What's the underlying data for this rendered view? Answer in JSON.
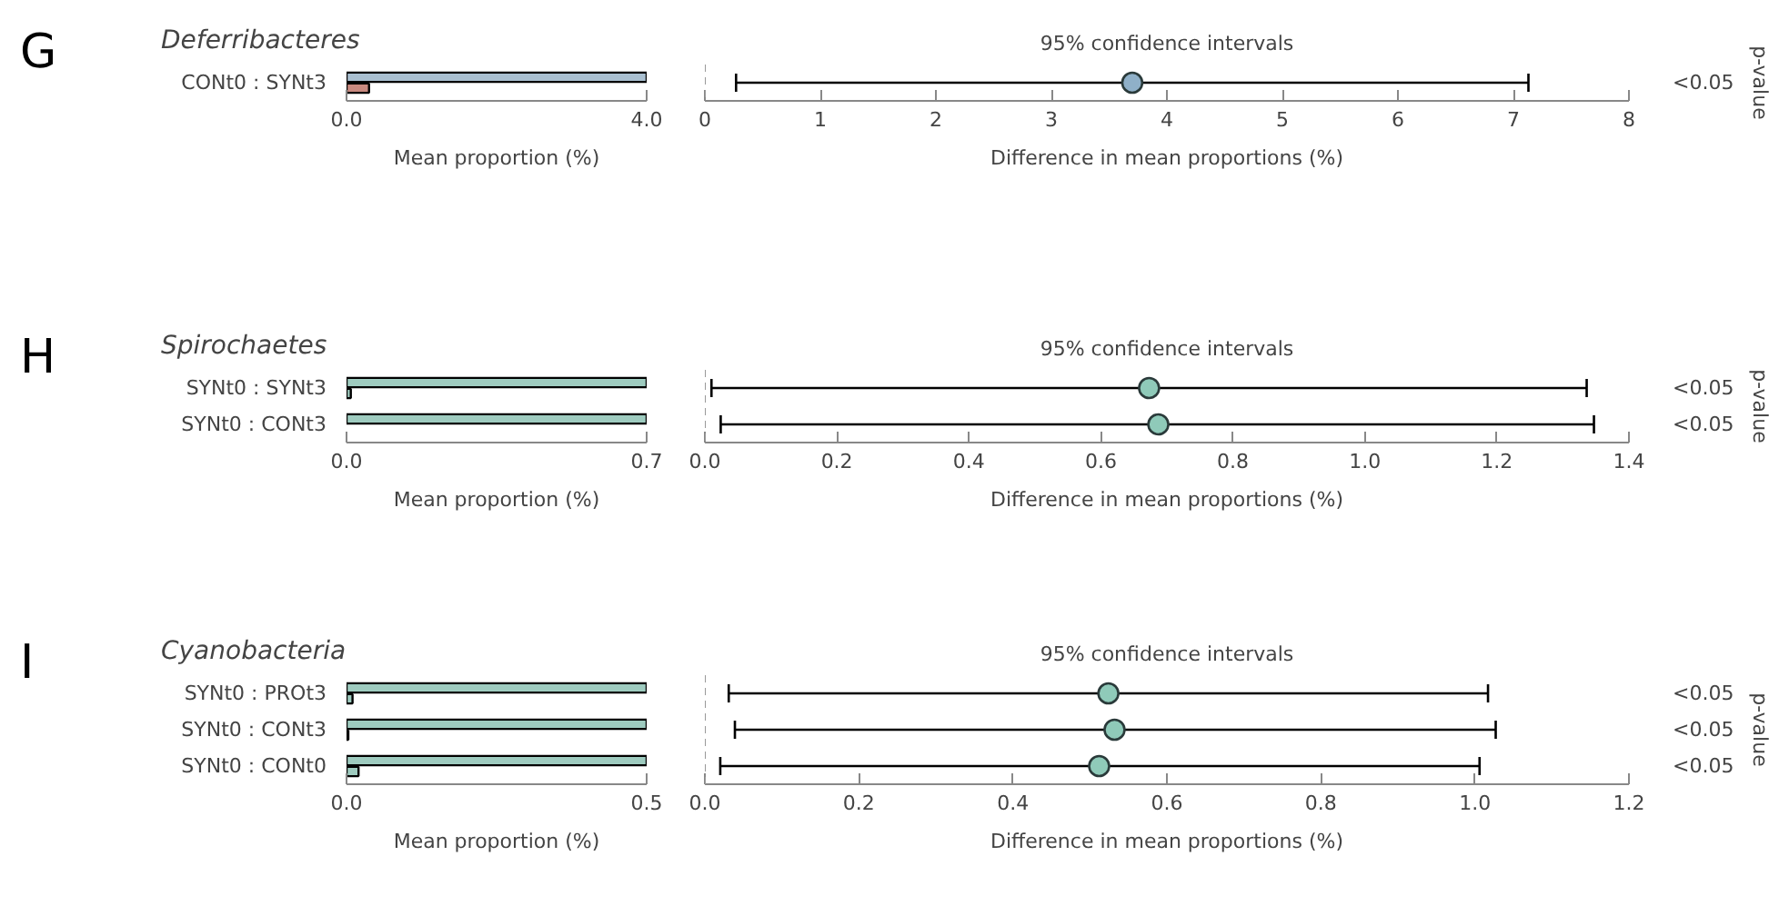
{
  "chart_data": [
    {
      "type": "bar",
      "orientation": "horizontal",
      "title": "Deferribacteres",
      "annotations": [
        "G"
      ],
      "xlabel": "Mean proportion (%)",
      "categories": [
        "CONt0 : SYNt3"
      ],
      "series": [
        {
          "color": "#a9bfd0",
          "values": [
            4.0
          ]
        },
        {
          "color": "#c98a80",
          "values": [
            0.3
          ]
        }
      ],
      "xlim": [
        0,
        4.0
      ],
      "xticks": [
        {
          "value": 0,
          "label": "0.0"
        },
        {
          "value": 4.0,
          "label": "4.0"
        }
      ],
      "grid": false
    },
    {
      "type": "scatter",
      "title": "95% confidence intervals",
      "xlabel": "Difference in mean proportions (%)",
      "y2label": "p-value",
      "categories": [
        null
      ],
      "orientation": "horizontal",
      "values": [
        3.7
      ],
      "errors": [
        [
          0.27,
          7.13
        ]
      ],
      "color": "#8fb0c8",
      "marker": "circle",
      "annotations": [
        "<0.05"
      ],
      "ref_lines": [
        {
          "axis": "x",
          "value": 0,
          "line_style": "dashed",
          "color": "#999999"
        }
      ],
      "xlim": [
        0,
        8
      ],
      "xticks": [
        0,
        1,
        2,
        3,
        4,
        5,
        6,
        7,
        8
      ],
      "tick_labels": "x",
      "grid": false
    },
    {
      "type": "bar",
      "orientation": "horizontal",
      "title": "Spirochaetes",
      "annotations": [
        "H"
      ],
      "xlabel": "Mean proportion (%)",
      "categories": [
        "SYNt0 : SYNt3",
        "SYNt0 : CONt3"
      ],
      "series": [
        {
          "color": "#9ecbbf",
          "values": [
            0.7,
            0.7
          ]
        },
        {
          "color": "#9ecbbf",
          "values": [
            0.01,
            null
          ]
        }
      ],
      "xlim": [
        0,
        0.7
      ],
      "xticks": [
        {
          "value": 0,
          "label": "0.0"
        },
        0.7
      ],
      "grid": false
    },
    {
      "type": "scatter",
      "title": "95% confidence intervals",
      "xlabel": "Difference in mean proportions (%)",
      "y2label": "p-value",
      "categories": [
        null,
        null
      ],
      "orientation": "horizontal",
      "values": [
        0.673,
        0.687
      ],
      "errors": [
        [
          0.01,
          1.336
        ],
        [
          0.024,
          1.347
        ]
      ],
      "color": "#8fcab9",
      "marker": "circle",
      "annotations": [
        "<0.05",
        "<0.05"
      ],
      "ref_lines": [
        {
          "axis": "x",
          "value": 0,
          "line_style": "dashed",
          "color": "#999999"
        }
      ],
      "xlim": [
        0,
        1.4
      ],
      "xticks": [
        {
          "value": 0,
          "label": "0.0"
        },
        0.2,
        0.4,
        0.6,
        0.8,
        {
          "value": 1.0,
          "label": "1.0"
        },
        1.2,
        1.4
      ],
      "tick_labels": "x",
      "grid": false
    },
    {
      "type": "bar",
      "orientation": "horizontal",
      "title": "Cyanobacteria",
      "annotations": [
        "I"
      ],
      "xlabel": "Mean proportion (%)",
      "categories": [
        "SYNt0 : PROt3",
        "SYNt0 : CONt3",
        "SYNt0 : CONt0"
      ],
      "series": [
        {
          "color": "#9ecbbf",
          "values": [
            0.5,
            0.5,
            0.5
          ]
        },
        {
          "color": "#9ecbbf",
          "values": [
            0.01,
            0.003,
            0.02
          ]
        }
      ],
      "xlim": [
        0,
        0.5
      ],
      "xticks": [
        {
          "value": 0,
          "label": "0.0"
        },
        0.5
      ],
      "grid": false
    },
    {
      "type": "scatter",
      "title": "95% confidence intervals",
      "xlabel": "Difference in mean proportions (%)",
      "y2label": "p-value",
      "categories": [
        null,
        null,
        null
      ],
      "orientation": "horizontal",
      "values": [
        0.524,
        0.532,
        0.512
      ],
      "errors": [
        [
          0.031,
          1.017
        ],
        [
          0.039,
          1.027
        ],
        [
          0.02,
          1.006
        ]
      ],
      "color": "#8fcab9",
      "marker": "circle",
      "annotations": [
        "<0.05",
        "<0.05",
        "<0.05"
      ],
      "ref_lines": [
        {
          "axis": "x",
          "value": 0,
          "line_style": "dashed",
          "color": "#999999"
        }
      ],
      "xlim": [
        0,
        1.2
      ],
      "xticks": [
        {
          "value": 0,
          "label": "0.0"
        },
        0.2,
        0.4,
        0.6,
        0.8,
        {
          "value": 1.0,
          "label": "1.0"
        },
        1.2
      ],
      "tick_labels": "x",
      "grid": false
    }
  ]
}
